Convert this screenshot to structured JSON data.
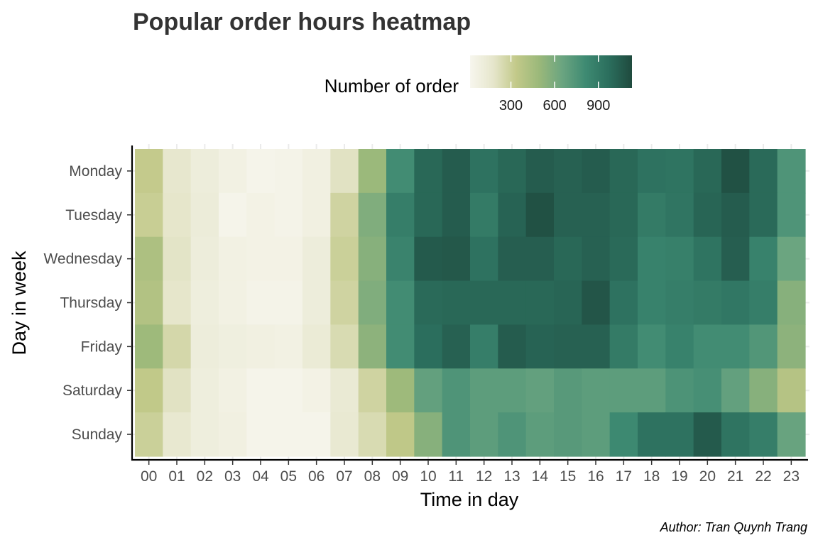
{
  "chart_data": {
    "type": "heatmap",
    "title": "Popular order hours heatmap",
    "xlabel": "Time in day",
    "ylabel": "Day in week",
    "caption": "Author: Tran Quynh Trang",
    "legend": {
      "title": "Number of order",
      "ticks": [
        "300",
        "600",
        "900"
      ],
      "tick_values": [
        300,
        600,
        900
      ],
      "range": [
        20,
        1130
      ],
      "placement": "top",
      "colors": [
        "#f7f6ee",
        "#e6e6cc",
        "#c2c989",
        "#9ab87a",
        "#6aa480",
        "#3e8a72",
        "#2b6e5d",
        "#1f4a3e"
      ]
    },
    "grid": true,
    "x": [
      "00",
      "01",
      "02",
      "03",
      "04",
      "05",
      "06",
      "07",
      "08",
      "09",
      "10",
      "11",
      "12",
      "13",
      "14",
      "15",
      "16",
      "17",
      "18",
      "19",
      "20",
      "21",
      "22",
      "23"
    ],
    "y": [
      "Monday",
      "Tuesday",
      "Wednesday",
      "Thursday",
      "Friday",
      "Saturday",
      "Sunday"
    ],
    "values": [
      [
        330,
        170,
        110,
        70,
        40,
        50,
        80,
        200,
        490,
        800,
        1000,
        1050,
        950,
        1000,
        1050,
        1030,
        1050,
        1000,
        950,
        940,
        1000,
        1100,
        990,
        750
      ],
      [
        310,
        180,
        120,
        40,
        60,
        50,
        80,
        280,
        580,
        880,
        1000,
        1050,
        900,
        1020,
        1100,
        1030,
        1030,
        1000,
        900,
        930,
        1010,
        1050,
        990,
        750
      ],
      [
        420,
        190,
        110,
        70,
        60,
        60,
        110,
        300,
        560,
        850,
        1060,
        1070,
        950,
        1040,
        1040,
        1000,
        1030,
        990,
        860,
        870,
        940,
        1040,
        860,
        650
      ],
      [
        400,
        180,
        100,
        70,
        50,
        50,
        110,
        280,
        580,
        800,
        990,
        1000,
        1000,
        1000,
        1000,
        1010,
        1080,
        950,
        860,
        880,
        900,
        920,
        880,
        560
      ],
      [
        480,
        260,
        110,
        90,
        80,
        70,
        130,
        240,
        540,
        800,
        970,
        1030,
        880,
        1050,
        1020,
        1030,
        1030,
        900,
        800,
        860,
        800,
        800,
        740,
        540
      ],
      [
        340,
        200,
        100,
        70,
        40,
        40,
        60,
        140,
        280,
        480,
        680,
        750,
        700,
        700,
        680,
        720,
        700,
        700,
        700,
        760,
        780,
        680,
        560,
        390
      ],
      [
        300,
        160,
        100,
        80,
        40,
        40,
        40,
        150,
        240,
        350,
        560,
        750,
        700,
        750,
        700,
        720,
        700,
        820,
        950,
        950,
        1060,
        940,
        880,
        660
      ]
    ]
  }
}
